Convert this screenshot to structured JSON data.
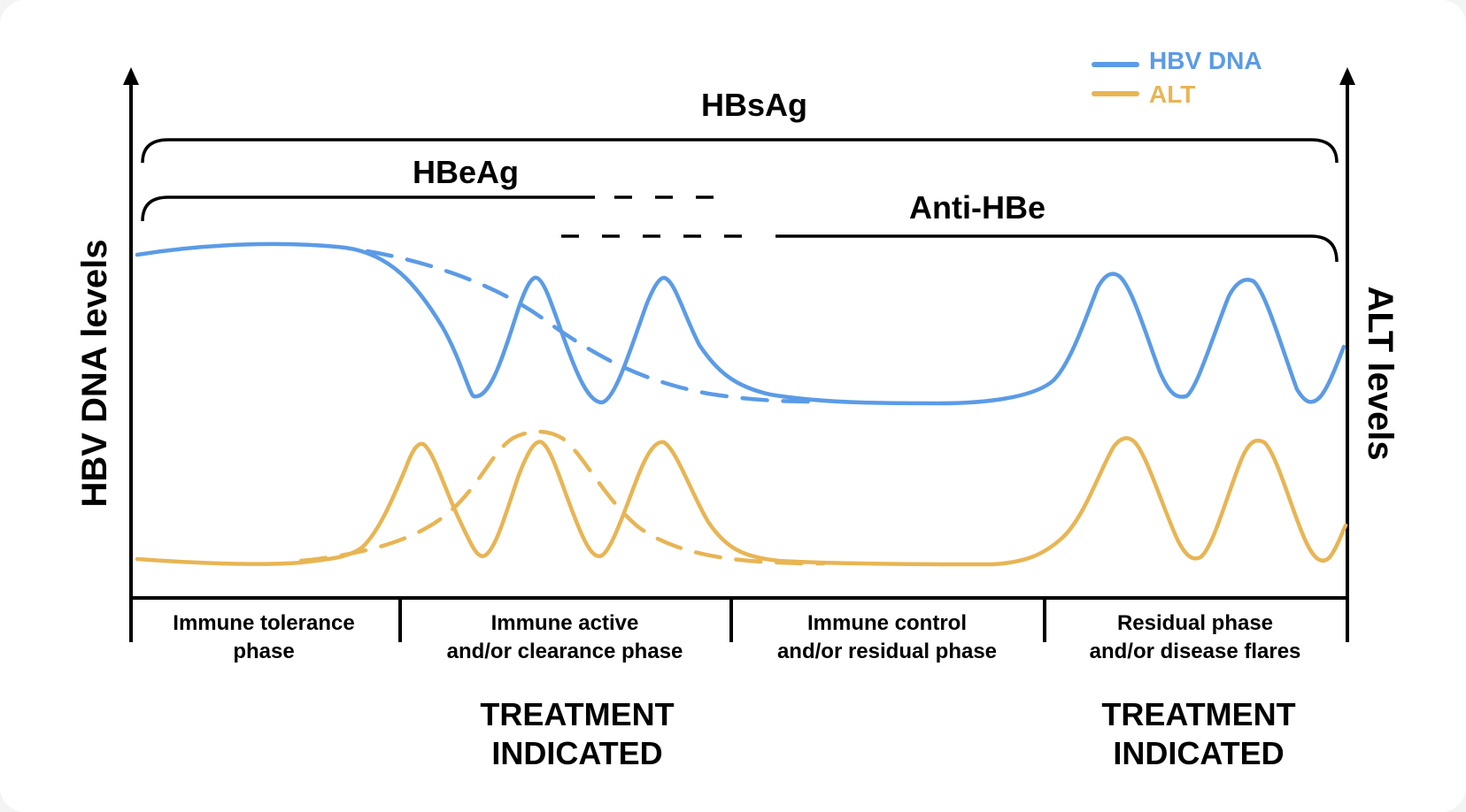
{
  "colors": {
    "hbv_dna": "#5B9BE6",
    "alt": "#E8B554",
    "ink": "#000000"
  },
  "axes": {
    "left_label": "HBV DNA levels",
    "right_label": "ALT levels"
  },
  "legend": [
    {
      "label": "HBV DNA",
      "series": "hbv_dna"
    },
    {
      "label": "ALT",
      "series": "alt"
    }
  ],
  "brackets": {
    "hbsag": "HBsAg",
    "hbeag": "HBeAg",
    "anti_hbe": "Anti-HBe"
  },
  "phases": [
    {
      "line1": "Immune tolerance",
      "line2": "phase"
    },
    {
      "line1": "Immune active",
      "line2": "and/or clearance phase"
    },
    {
      "line1": "Immune control",
      "line2": "and/or residual phase"
    },
    {
      "line1": "Residual phase",
      "line2": "and/or disease flares"
    }
  ],
  "treatment": [
    {
      "line1": "TREATMENT",
      "line2": "INDICATED"
    },
    {
      "line1": "TREATMENT",
      "line2": "INDICATED"
    }
  ]
}
